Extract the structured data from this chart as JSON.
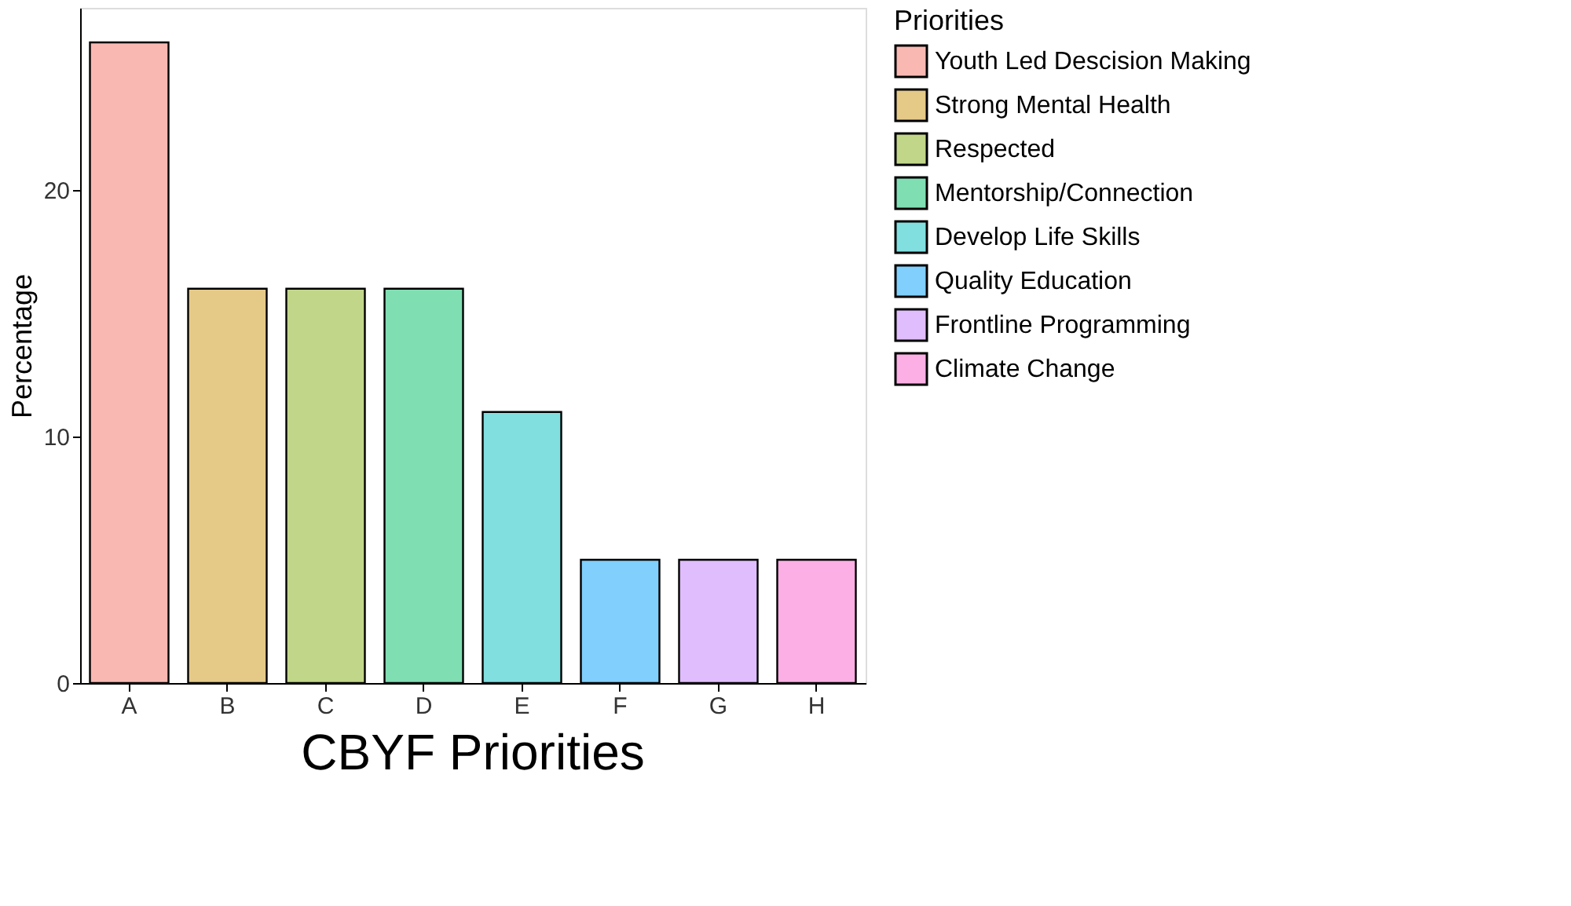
{
  "chart_data": {
    "type": "bar",
    "title": "CBYF Priorities",
    "ylabel": "Percentage",
    "legend_title": "Priorities",
    "categories": [
      "A",
      "B",
      "C",
      "D",
      "E",
      "F",
      "G",
      "H"
    ],
    "series": [
      {
        "name": "Youth Led Descision Making",
        "color": "#f9b8b2",
        "values": [
          26,
          null,
          null,
          null,
          null,
          null,
          null,
          null
        ]
      },
      {
        "name": "Strong Mental Health",
        "color": "#e5c987",
        "values": [
          null,
          16,
          null,
          null,
          null,
          null,
          null,
          null
        ]
      },
      {
        "name": "Respected",
        "color": "#c2d689",
        "values": [
          null,
          null,
          16,
          null,
          null,
          null,
          null,
          null
        ]
      },
      {
        "name": "Mentorship/Connection",
        "color": "#80deb3",
        "values": [
          null,
          null,
          null,
          16,
          null,
          null,
          null,
          null
        ]
      },
      {
        "name": "Develop Life Skills",
        "color": "#81dfe0",
        "values": [
          null,
          null,
          null,
          null,
          11,
          null,
          null,
          null
        ]
      },
      {
        "name": "Quality Education",
        "color": "#80cffc",
        "values": [
          null,
          null,
          null,
          null,
          null,
          5,
          null,
          null
        ]
      },
      {
        "name": "Frontline Programming",
        "color": "#e0bdfc",
        "values": [
          null,
          null,
          null,
          null,
          null,
          null,
          5,
          null
        ]
      },
      {
        "name": "Climate Change",
        "color": "#fbafe4",
        "values": [
          null,
          null,
          null,
          null,
          null,
          null,
          null,
          5
        ]
      }
    ],
    "ylim": [
      0,
      27.4
    ],
    "yticks": [
      0,
      10,
      20
    ],
    "grid": false,
    "legend": "right"
  }
}
